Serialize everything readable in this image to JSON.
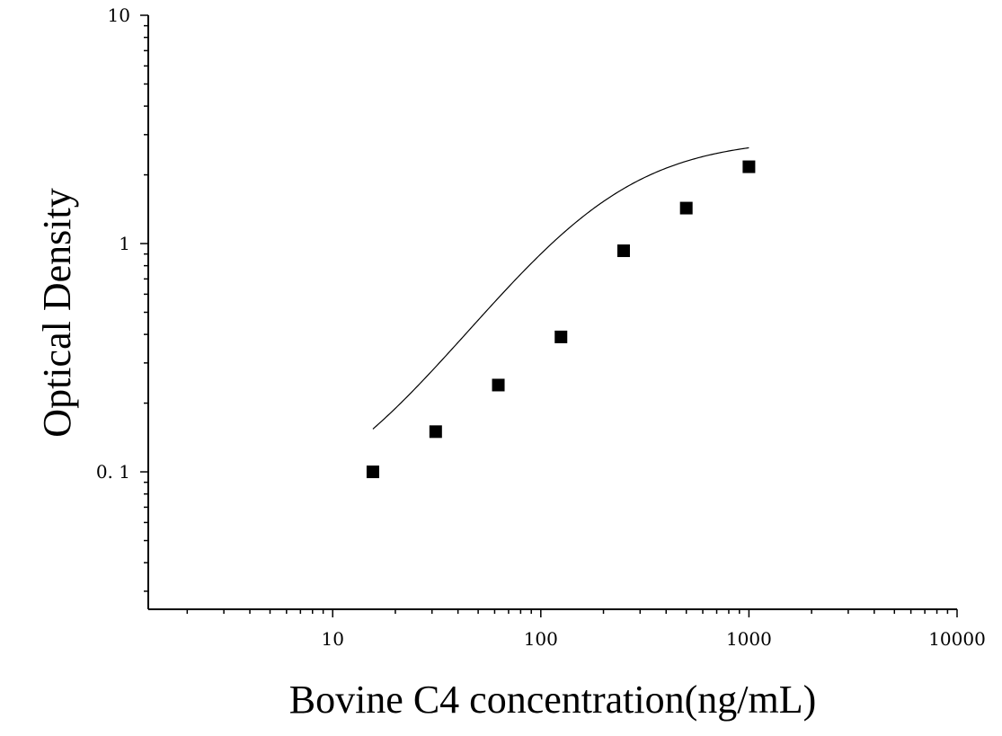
{
  "chart_data": {
    "type": "scatter",
    "xlabel": "Bovine C4 concentration(ng/mL)",
    "ylabel": "Optical Density",
    "x_scale": "log",
    "y_scale": "log",
    "xlim": [
      1.3,
      10000
    ],
    "ylim": [
      0.025,
      10
    ],
    "x_ticks": [
      10,
      100,
      1000,
      10000
    ],
    "x_tick_labels": [
      "10",
      "100",
      "1000",
      "10000"
    ],
    "y_ticks": [
      0.1,
      1,
      10
    ],
    "y_tick_labels": [
      "0. 1",
      "1",
      "10"
    ],
    "grid": false,
    "legend": "none",
    "points": {
      "x": [
        15.6,
        31.25,
        62.5,
        125,
        250,
        500,
        1000
      ],
      "y": [
        0.1,
        0.15,
        0.24,
        0.39,
        0.93,
        1.43,
        2.17
      ],
      "marker": "square",
      "color": "#000000"
    },
    "fit_curve": {
      "type": "four-parameter-logistic",
      "x_range": [
        15.6,
        1000
      ],
      "color": "#000000",
      "params": {
        "bottom": 0.06,
        "top": 2.9,
        "ec50": 190,
        "hill": 1.35
      }
    }
  }
}
